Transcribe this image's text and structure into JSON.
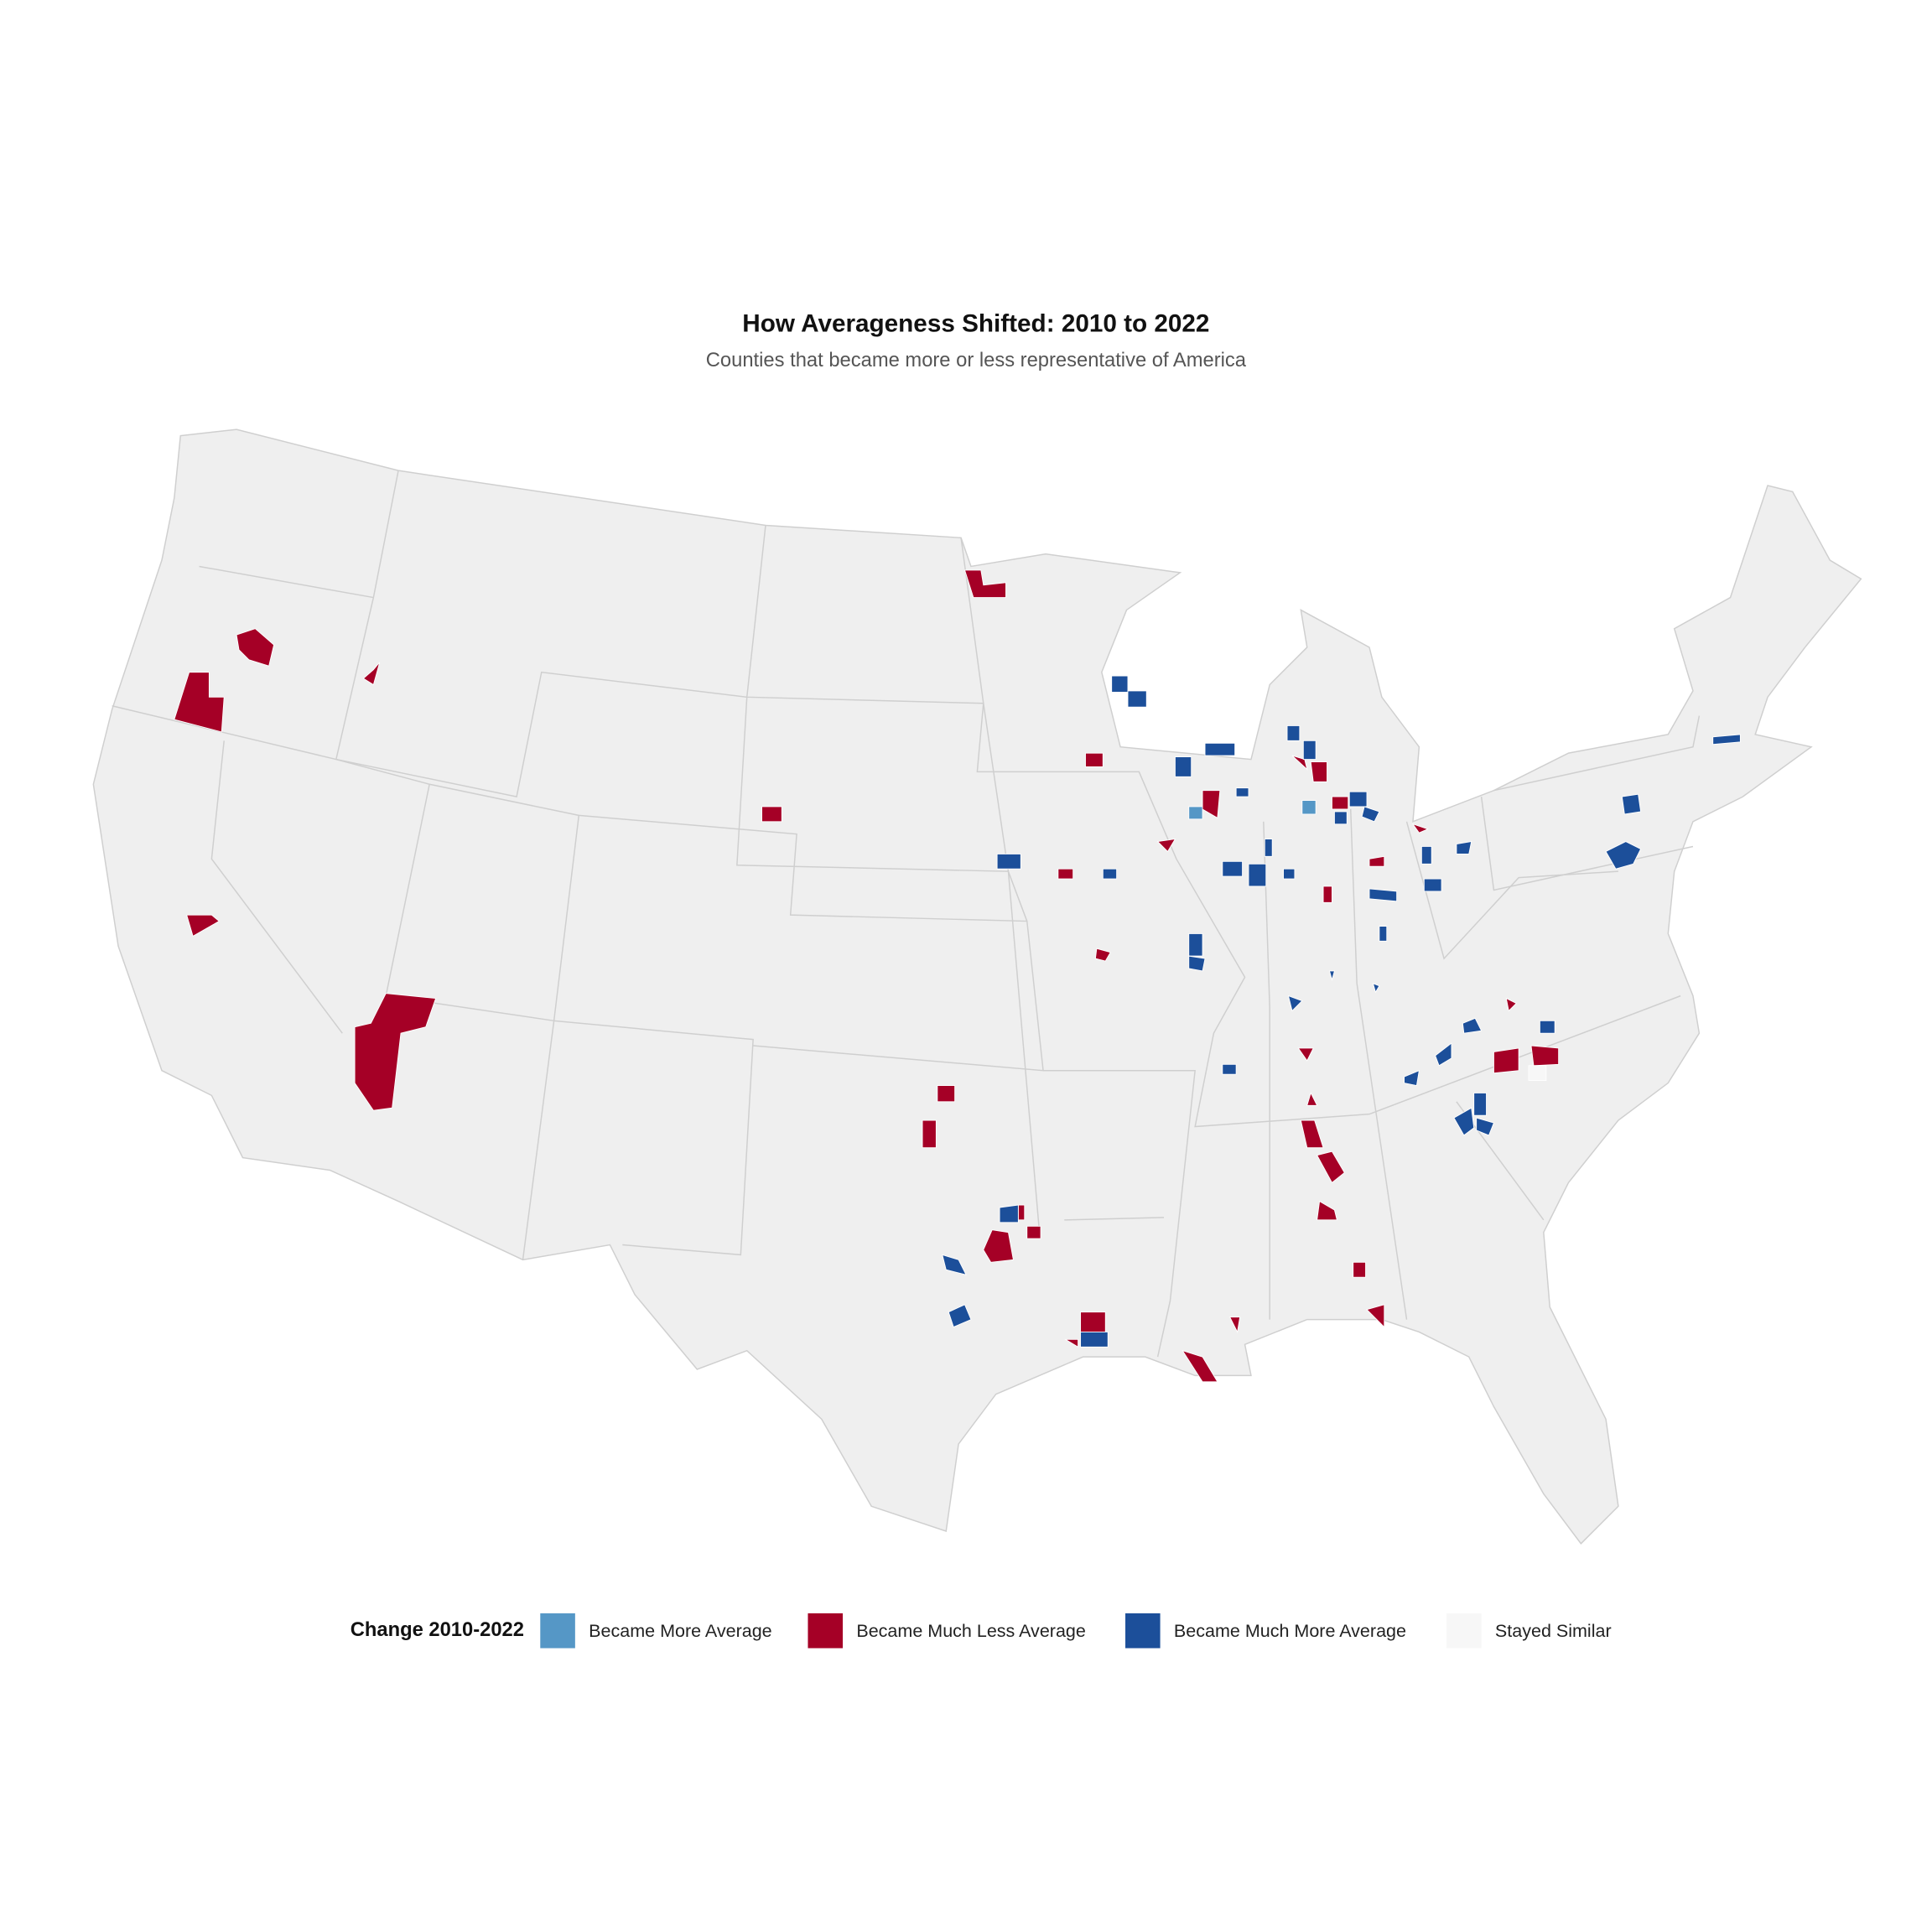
{
  "title": "How Averageness Shifted: 2010 to 2022",
  "subtitle": "Counties that became more or less representative of America",
  "legend": {
    "title": "Change 2010-2022",
    "items": [
      {
        "label": "Became More Average",
        "color": "#5597c6"
      },
      {
        "label": "Became Much Less Average",
        "color": "#a50026"
      },
      {
        "label": "Became Much More Average",
        "color": "#1c4f9a"
      },
      {
        "label": "Stayed Similar",
        "color": "#f7f7f7"
      }
    ]
  }
}
